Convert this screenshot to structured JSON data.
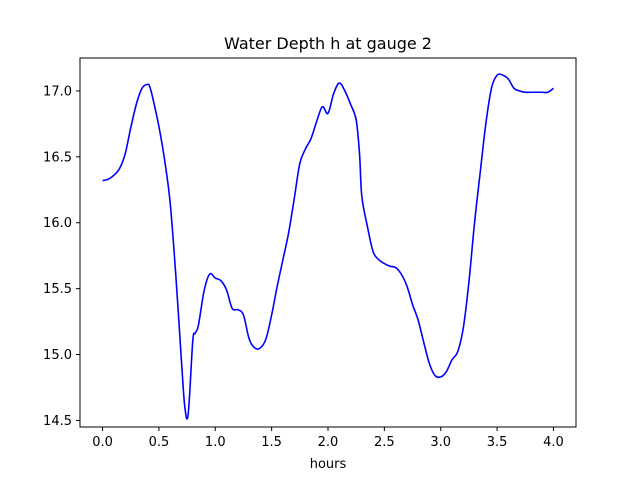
{
  "chart_data": {
    "type": "line",
    "title": "Water Depth h at gauge 2",
    "xlabel": "hours",
    "ylabel": "",
    "xlim": [
      -0.2,
      4.2
    ],
    "ylim": [
      14.45,
      17.25
    ],
    "xticks": [
      0.0,
      0.5,
      1.0,
      1.5,
      2.0,
      2.5,
      3.0,
      3.5,
      4.0
    ],
    "xtick_labels": [
      "0.0",
      "0.5",
      "1.0",
      "1.5",
      "2.0",
      "2.5",
      "3.0",
      "3.5",
      "4.0"
    ],
    "yticks": [
      14.5,
      15.0,
      15.5,
      16.0,
      16.5,
      17.0
    ],
    "ytick_labels": [
      "14.5",
      "15.0",
      "15.5",
      "16.0",
      "16.5",
      "17.0"
    ],
    "grid": false,
    "legend": "none",
    "series": [
      {
        "color": "#0000ff",
        "x": [
          0.0,
          0.05,
          0.1,
          0.15,
          0.2,
          0.25,
          0.3,
          0.35,
          0.4,
          0.42,
          0.45,
          0.5,
          0.55,
          0.6,
          0.65,
          0.7,
          0.73,
          0.76,
          0.8,
          0.82,
          0.85,
          0.9,
          0.95,
          1.0,
          1.05,
          1.1,
          1.15,
          1.2,
          1.25,
          1.3,
          1.35,
          1.4,
          1.45,
          1.5,
          1.55,
          1.6,
          1.65,
          1.7,
          1.75,
          1.8,
          1.85,
          1.9,
          1.95,
          2.0,
          2.05,
          2.1,
          2.15,
          2.2,
          2.25,
          2.28,
          2.3,
          2.35,
          2.4,
          2.45,
          2.5,
          2.55,
          2.6,
          2.65,
          2.7,
          2.75,
          2.8,
          2.85,
          2.9,
          2.95,
          3.0,
          3.05,
          3.1,
          3.15,
          3.2,
          3.25,
          3.3,
          3.35,
          3.4,
          3.45,
          3.5,
          3.55,
          3.6,
          3.65,
          3.7,
          3.75,
          3.8,
          3.85,
          3.9,
          3.95,
          4.0
        ],
        "y": [
          16.32,
          16.33,
          16.36,
          16.41,
          16.52,
          16.72,
          16.9,
          17.02,
          17.05,
          17.03,
          16.93,
          16.73,
          16.48,
          16.15,
          15.6,
          14.95,
          14.6,
          14.55,
          15.1,
          15.16,
          15.22,
          15.48,
          15.61,
          15.58,
          15.56,
          15.49,
          15.35,
          15.34,
          15.3,
          15.12,
          15.05,
          15.05,
          15.12,
          15.3,
          15.52,
          15.72,
          15.92,
          16.18,
          16.45,
          16.56,
          16.64,
          16.77,
          16.88,
          16.83,
          16.98,
          17.06,
          17.0,
          16.9,
          16.78,
          16.52,
          16.2,
          15.97,
          15.78,
          15.72,
          15.69,
          15.67,
          15.66,
          15.61,
          15.52,
          15.38,
          15.26,
          15.09,
          14.93,
          14.84,
          14.83,
          14.87,
          14.96,
          15.02,
          15.2,
          15.55,
          16.0,
          16.38,
          16.75,
          17.02,
          17.12,
          17.12,
          17.09,
          17.02,
          17.0,
          16.99,
          16.99,
          16.99,
          16.99,
          16.99,
          17.02
        ]
      }
    ]
  }
}
